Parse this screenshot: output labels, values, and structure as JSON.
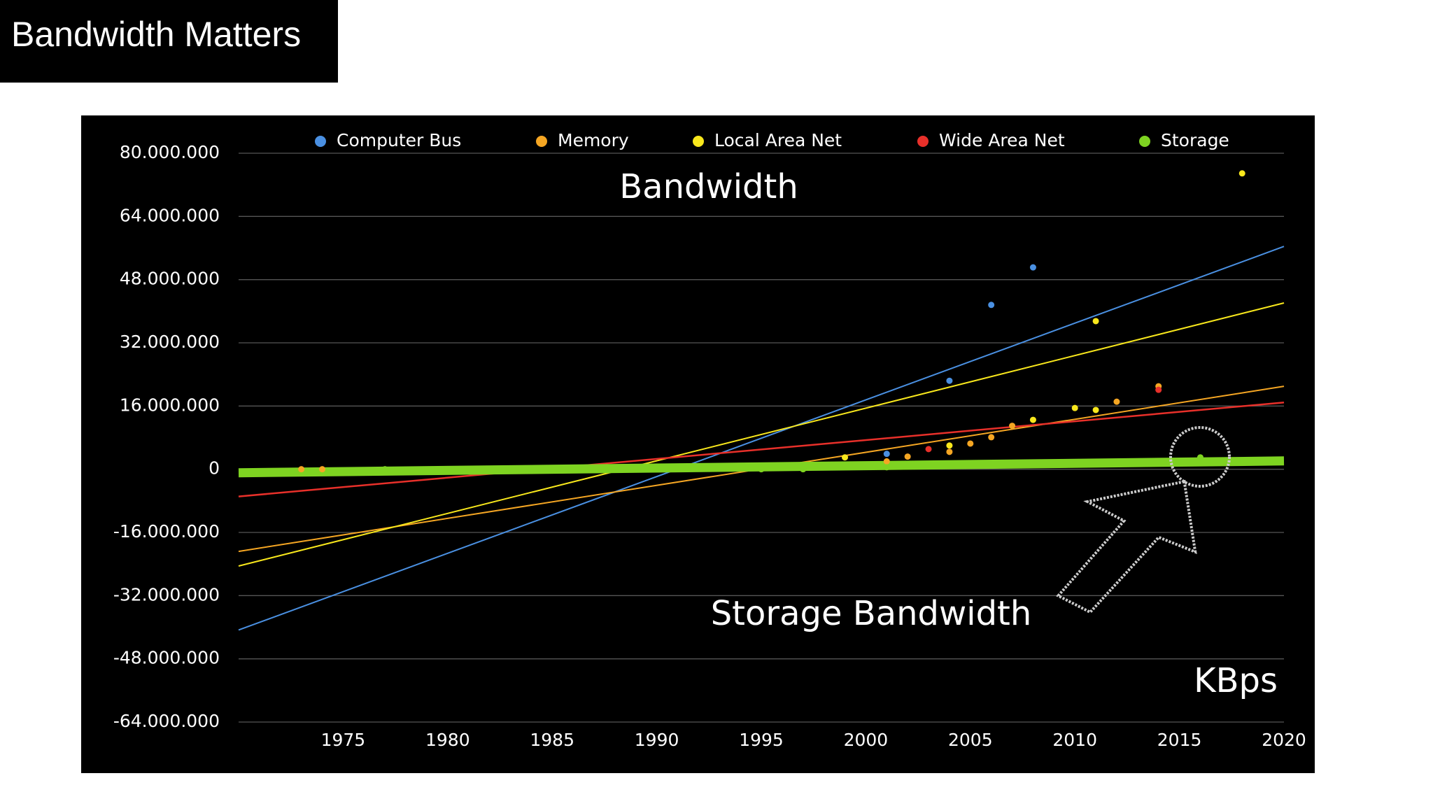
{
  "title": "Bandwidth Matters",
  "chart_data": {
    "type": "scatter",
    "title": "Bandwidth",
    "annotations": [
      "Storage Bandwidth",
      "KBps"
    ],
    "xlim": [
      1970,
      2020
    ],
    "xticks": [
      1975,
      1980,
      1985,
      1990,
      1995,
      2000,
      2005,
      2010,
      2015,
      2020
    ],
    "ylim": [
      -64000000,
      80000000
    ],
    "yticks": [
      {
        "value": -64000000,
        "label": "-64.000.000"
      },
      {
        "value": -48000000,
        "label": "-48.000.000"
      },
      {
        "value": -32000000,
        "label": "-32.000.000"
      },
      {
        "value": -16000000,
        "label": "-16.000.000"
      },
      0,
      {
        "value": 16000000,
        "label": "16.000.000"
      },
      {
        "value": 32000000,
        "label": "32.000.000"
      },
      {
        "value": 48000000,
        "label": "48.000.000"
      },
      {
        "value": 64000000,
        "label": "64.000.000"
      },
      {
        "value": 80000000,
        "label": "80.000.000"
      }
    ],
    "grid": true,
    "series": [
      {
        "name": "Computer Bus",
        "color": "#4a90e2",
        "x": [
          2001,
          2004,
          2006,
          2008
        ],
        "values": [
          3900000,
          22400000,
          41600000,
          51100000
        ],
        "trend": {
          "x": [
            1970,
            2020
          ],
          "values": [
            -40700000,
            56400000
          ]
        }
      },
      {
        "name": "Memory",
        "color": "#f5a623",
        "x": [
          1973,
          1974,
          2001,
          2002,
          2004,
          2005,
          2006,
          2007,
          2012,
          2014
        ],
        "values": [
          0,
          0,
          2000000,
          3200000,
          4400000,
          6500000,
          8100000,
          11000000,
          17100000,
          21000000
        ],
        "trend": {
          "x": [
            1970,
            2020
          ],
          "values": [
            -20800000,
            21000000
          ]
        }
      },
      {
        "name": "Local Area Net",
        "color": "#f8e71c",
        "x": [
          1999,
          2004,
          2008,
          2010,
          2011,
          2011,
          2018
        ],
        "values": [
          3000000,
          6000000,
          12500000,
          15500000,
          15000000,
          37500000,
          74900000
        ],
        "trend": {
          "x": [
            1970,
            2020
          ],
          "values": [
            -24500000,
            42100000
          ]
        }
      },
      {
        "name": "Wide Area Net",
        "color": "#e8302a",
        "x": [
          2003,
          2014
        ],
        "values": [
          5100000,
          20100000
        ],
        "trend": {
          "x": [
            1970,
            2020
          ],
          "values": [
            -6900000,
            16900000
          ]
        }
      },
      {
        "name": "Storage",
        "color": "#7ed321",
        "x": [
          1977,
          1995,
          1997,
          2001,
          2016
        ],
        "values": [
          0,
          0,
          0,
          500000,
          3000000
        ],
        "trend": {
          "x": [
            1970,
            2020
          ],
          "values": [
            -900000,
            2100000
          ]
        }
      }
    ]
  }
}
